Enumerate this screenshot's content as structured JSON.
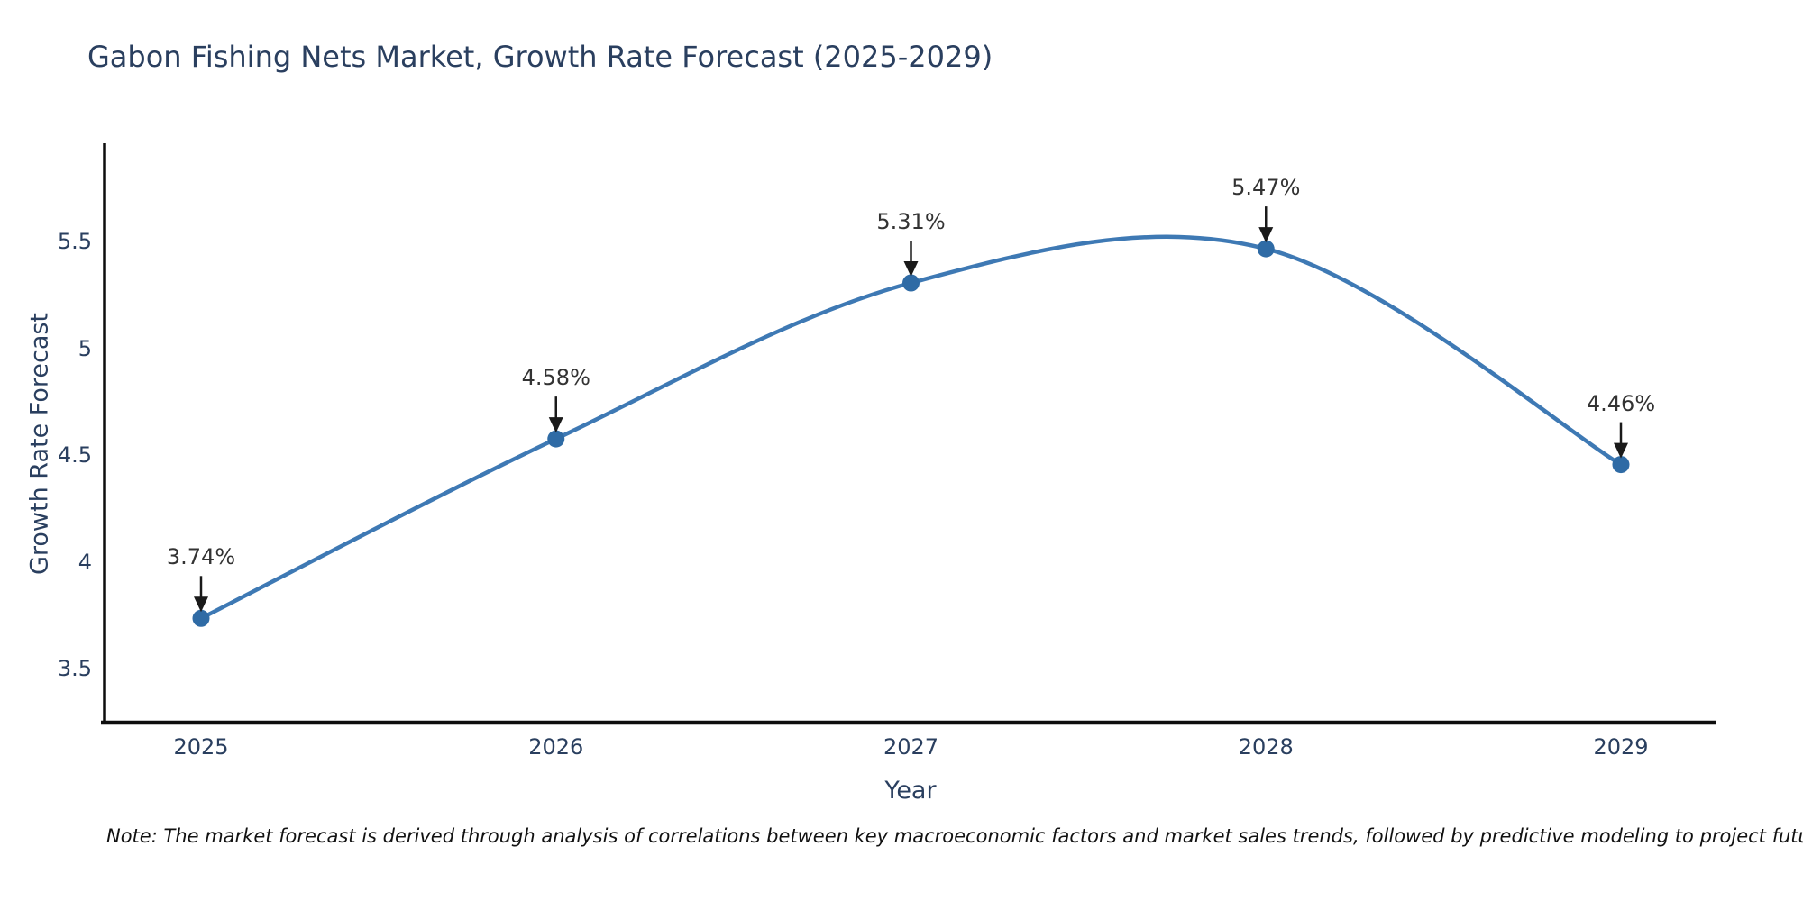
{
  "title": "Gabon Fishing Nets Market, Growth Rate Forecast (2025-2029)",
  "note": "Note: The market forecast is derived through analysis of correlations between key macroeconomic factors and market sales trends, followed by predictive modeling to project future sales",
  "colors": {
    "line": "#3e79b4",
    "marker": "#2f6ba5",
    "axis": "#0d0d0d",
    "arrow": "#1a1a1a",
    "title_text": "#2a3f5f",
    "tick_text": "#2a3f5f",
    "annotation_text": "#333333",
    "background": "#ffffff"
  },
  "chart_data": {
    "type": "line",
    "line_shape": "spline",
    "title": "Gabon Fishing Nets Market, Growth Rate Forecast (2025-2029)",
    "xlabel": "Year",
    "ylabel": "Growth Rate Forecast",
    "x": [
      2025,
      2026,
      2027,
      2028,
      2029
    ],
    "values": [
      3.74,
      4.58,
      5.31,
      5.47,
      4.46
    ],
    "labels": [
      "3.74%",
      "4.58%",
      "5.31%",
      "5.47%",
      "4.46%"
    ],
    "yticks": [
      3.5,
      4,
      4.5,
      5,
      5.5
    ],
    "ylim": [
      3.2,
      5.95
    ],
    "grid": false,
    "legend": false,
    "annotations": "black down-arrows from value labels to markers",
    "markers": "filled circles"
  }
}
